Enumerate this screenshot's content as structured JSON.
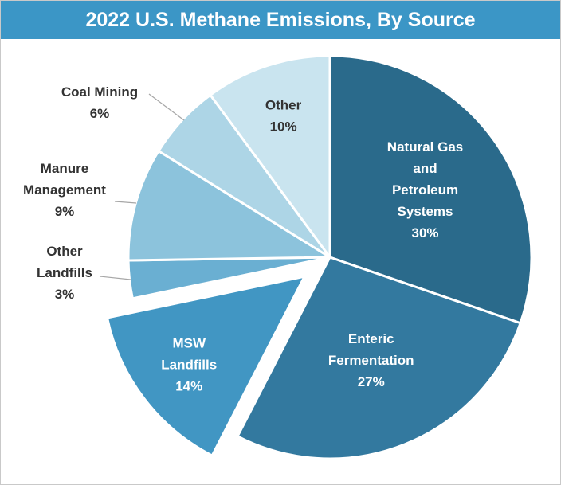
{
  "chart_data": {
    "type": "pie",
    "title": "2022 U.S. Methane Emissions, By Source",
    "unit": "%",
    "slices": [
      {
        "label": [
          "Natural Gas",
          "and",
          "Petroleum",
          "Systems"
        ],
        "value": 30,
        "value_label": "30%",
        "color": "#2a6a8b",
        "text_color": "#ffffff"
      },
      {
        "label": [
          "Enteric",
          "Fermentation"
        ],
        "value": 27,
        "value_label": "27%",
        "color": "#33799f",
        "text_color": "#ffffff"
      },
      {
        "label": [
          "MSW",
          "Landfills"
        ],
        "value": 14,
        "value_label": "14%",
        "color": "#4196c3",
        "text_color": "#ffffff",
        "exploded": true
      },
      {
        "label": [
          "Other",
          "Landfills"
        ],
        "value": 3,
        "value_label": "3%",
        "color": "#6aafd2",
        "text_color": "#333333"
      },
      {
        "label": [
          "Manure",
          "Management"
        ],
        "value": 9,
        "value_label": "9%",
        "color": "#8cc3dc",
        "text_color": "#333333"
      },
      {
        "label": [
          "Coal Mining"
        ],
        "value": 6,
        "value_label": "6%",
        "color": "#add5e6",
        "text_color": "#333333"
      },
      {
        "label": [
          "Other"
        ],
        "value": 10,
        "value_label": "10%",
        "color": "#c9e4ef",
        "text_color": "#333333"
      }
    ]
  }
}
